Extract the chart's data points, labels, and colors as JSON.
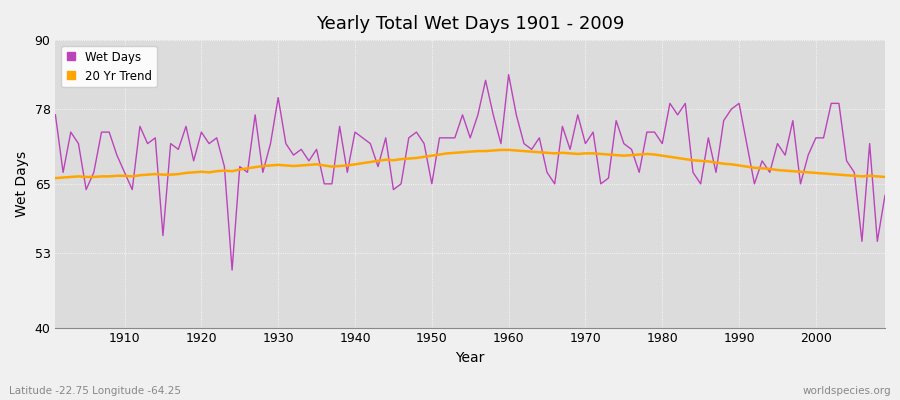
{
  "title": "Yearly Total Wet Days 1901 - 2009",
  "xlabel": "Year",
  "ylabel": "Wet Days",
  "lat_lon_label": "Latitude -22.75 Longitude -64.25",
  "watermark": "worldspecies.org",
  "ylim": [
    40,
    90
  ],
  "yticks": [
    40,
    53,
    65,
    78,
    90
  ],
  "xlim": [
    1901,
    2009
  ],
  "wet_days_color": "#BB44BB",
  "trend_color": "#FFA500",
  "bg_color": "#F0F0F0",
  "inner_bg_color": "#DCDCDC",
  "xticks": [
    1910,
    1920,
    1930,
    1940,
    1950,
    1960,
    1970,
    1980,
    1990,
    2000
  ],
  "years": [
    1901,
    1902,
    1903,
    1904,
    1905,
    1906,
    1907,
    1908,
    1909,
    1910,
    1911,
    1912,
    1913,
    1914,
    1915,
    1916,
    1917,
    1918,
    1919,
    1920,
    1921,
    1922,
    1923,
    1924,
    1925,
    1926,
    1927,
    1928,
    1929,
    1930,
    1931,
    1932,
    1933,
    1934,
    1935,
    1936,
    1937,
    1938,
    1939,
    1940,
    1941,
    1942,
    1943,
    1944,
    1945,
    1946,
    1947,
    1948,
    1949,
    1950,
    1951,
    1952,
    1953,
    1954,
    1955,
    1956,
    1957,
    1958,
    1959,
    1960,
    1961,
    1962,
    1963,
    1964,
    1965,
    1966,
    1967,
    1968,
    1969,
    1970,
    1971,
    1972,
    1973,
    1974,
    1975,
    1976,
    1977,
    1978,
    1979,
    1980,
    1981,
    1982,
    1983,
    1984,
    1985,
    1986,
    1987,
    1988,
    1989,
    1990,
    1991,
    1992,
    1993,
    1994,
    1995,
    1996,
    1997,
    1998,
    1999,
    2000,
    2001,
    2002,
    2003,
    2004,
    2005,
    2006,
    2007,
    2008,
    2009
  ],
  "wet_days": [
    77,
    67,
    74,
    72,
    64,
    67,
    74,
    74,
    70,
    67,
    64,
    75,
    72,
    73,
    56,
    72,
    71,
    75,
    69,
    74,
    72,
    73,
    68,
    50,
    68,
    67,
    77,
    67,
    72,
    80,
    72,
    70,
    71,
    69,
    71,
    65,
    65,
    75,
    67,
    74,
    73,
    72,
    68,
    73,
    64,
    65,
    73,
    74,
    72,
    65,
    73,
    73,
    73,
    77,
    73,
    77,
    83,
    77,
    72,
    84,
    77,
    72,
    71,
    73,
    67,
    65,
    75,
    71,
    77,
    72,
    74,
    65,
    66,
    76,
    72,
    71,
    67,
    74,
    74,
    72,
    79,
    77,
    79,
    67,
    65,
    73,
    67,
    76,
    78,
    79,
    72,
    65,
    69,
    67,
    72,
    70,
    76,
    65,
    70,
    73,
    73,
    79,
    79,
    69,
    67,
    55,
    72,
    55,
    63
  ],
  "trend": [
    66.0,
    66.1,
    66.2,
    66.3,
    66.2,
    66.2,
    66.3,
    66.3,
    66.4,
    66.4,
    66.3,
    66.5,
    66.6,
    66.7,
    66.6,
    66.6,
    66.7,
    66.9,
    67.0,
    67.1,
    67.0,
    67.2,
    67.3,
    67.2,
    67.5,
    67.7,
    67.9,
    68.1,
    68.2,
    68.3,
    68.2,
    68.1,
    68.2,
    68.3,
    68.4,
    68.2,
    68.0,
    68.1,
    68.2,
    68.4,
    68.6,
    68.8,
    69.0,
    69.2,
    69.1,
    69.3,
    69.4,
    69.5,
    69.7,
    69.9,
    70.1,
    70.3,
    70.4,
    70.5,
    70.6,
    70.7,
    70.7,
    70.8,
    70.9,
    70.9,
    70.8,
    70.7,
    70.6,
    70.5,
    70.4,
    70.3,
    70.4,
    70.3,
    70.2,
    70.3,
    70.3,
    70.2,
    70.1,
    70.0,
    69.9,
    70.0,
    70.1,
    70.2,
    70.1,
    69.9,
    69.7,
    69.5,
    69.3,
    69.1,
    69.0,
    68.9,
    68.7,
    68.5,
    68.4,
    68.2,
    68.0,
    67.8,
    67.7,
    67.6,
    67.4,
    67.3,
    67.2,
    67.1,
    67.0,
    66.9,
    66.8,
    66.7,
    66.6,
    66.5,
    66.4,
    66.3,
    66.4,
    66.3,
    66.2
  ]
}
